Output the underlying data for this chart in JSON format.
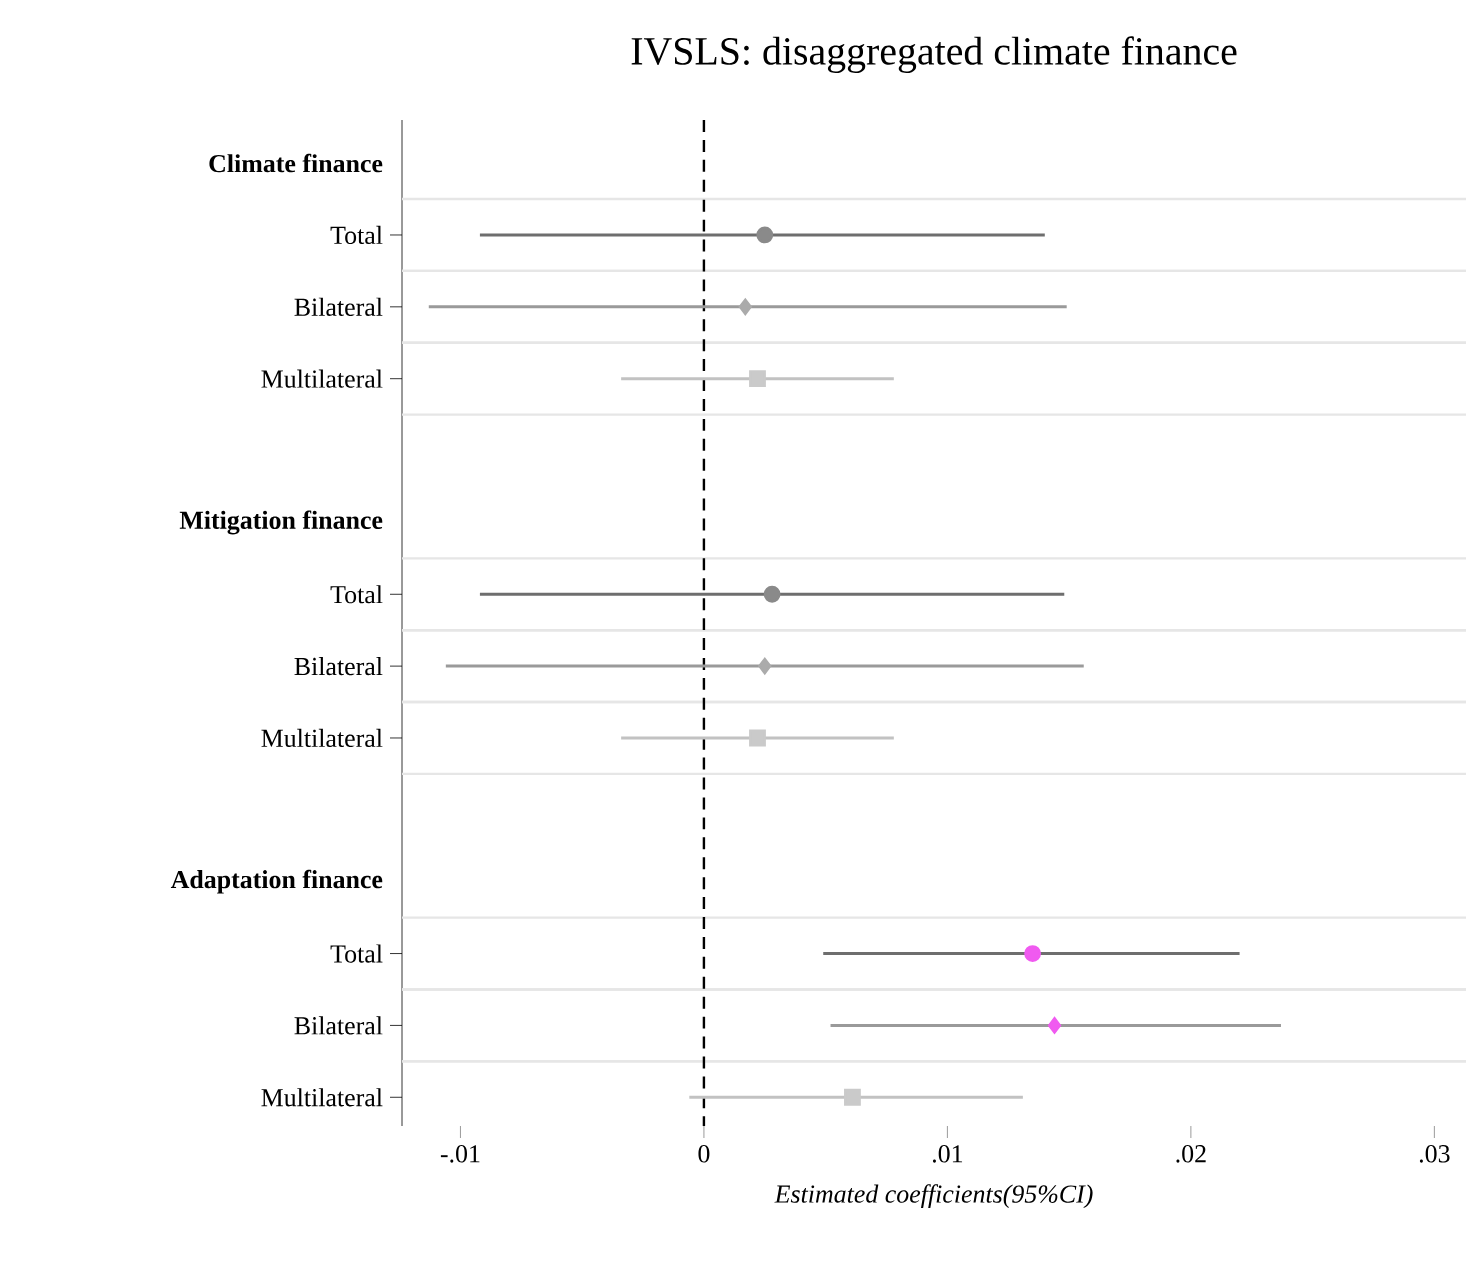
{
  "chart_data": {
    "type": "scatter",
    "orientation": "horizontal",
    "title": "IVSLS: disaggregated climate finance",
    "xlabel": "Estimated coefficients(95%CI)",
    "categories": [
      "Climate finance",
      "Total",
      "Bilateral",
      "Multilateral",
      null,
      "Mitigation finance",
      "Total",
      "Bilateral",
      "Multilateral",
      null,
      "Adaptation finance",
      "Total",
      "Bilateral",
      "Multilateral"
    ],
    "series": [
      {
        "color": "#6e6e6e",
        "marker": "circle",
        "values": [
          null,
          0.0025,
          null,
          null,
          null,
          null,
          0.0028,
          null,
          null,
          null,
          null,
          0.0135,
          null,
          null
        ],
        "errors": [
          null,
          [
            -0.0092,
            0.014
          ],
          null,
          null,
          null,
          null,
          [
            -0.0092,
            0.0148
          ],
          null,
          null,
          null,
          null,
          [
            0.0049,
            0.022
          ],
          null,
          null
        ],
        "colors": [
          null,
          "#8a8a8a",
          null,
          null,
          null,
          null,
          "#8a8a8a",
          null,
          null,
          null,
          null,
          "#f05af0",
          null,
          null
        ]
      },
      {
        "color": "#9a9a9a",
        "marker": "diamond",
        "values": [
          null,
          null,
          0.0017,
          null,
          null,
          null,
          null,
          0.0025,
          null,
          null,
          null,
          null,
          0.0144,
          null
        ],
        "errors": [
          null,
          null,
          [
            -0.0113,
            0.0149
          ],
          null,
          null,
          null,
          null,
          [
            -0.0106,
            0.0156
          ],
          null,
          null,
          null,
          null,
          [
            0.0052,
            0.0237
          ],
          null
        ],
        "colors": [
          null,
          null,
          "#ababab",
          null,
          null,
          null,
          null,
          "#ababab",
          null,
          null,
          null,
          null,
          "#f05af0",
          null
        ]
      },
      {
        "color": "#c2c2c2",
        "marker": "square",
        "values": [
          null,
          null,
          null,
          0.0022,
          null,
          null,
          null,
          null,
          0.0022,
          null,
          null,
          null,
          null,
          0.0061
        ],
        "errors": [
          null,
          null,
          null,
          [
            -0.0034,
            0.0078
          ],
          null,
          null,
          null,
          null,
          [
            -0.0034,
            0.0078
          ],
          null,
          null,
          null,
          null,
          [
            -0.0006,
            0.0131
          ]
        ],
        "colors": [
          null,
          null,
          null,
          "#cacaca",
          null,
          null,
          null,
          null,
          "#cacaca",
          null,
          null,
          null,
          null,
          "#cacaca"
        ]
      }
    ],
    "xlim": [
      -0.0124,
      0.0313
    ],
    "xticks": [
      {
        "value": -0.01,
        "label": "-.01"
      },
      0,
      {
        "value": 0.01,
        "label": ".01"
      },
      {
        "value": 0.02,
        "label": ".02"
      },
      {
        "value": 0.03,
        "label": ".03"
      }
    ],
    "ref_lines": [
      {
        "axis": "x",
        "value": 0,
        "color": "#000000",
        "line_style": "dashed"
      }
    ],
    "grid": "y"
  }
}
